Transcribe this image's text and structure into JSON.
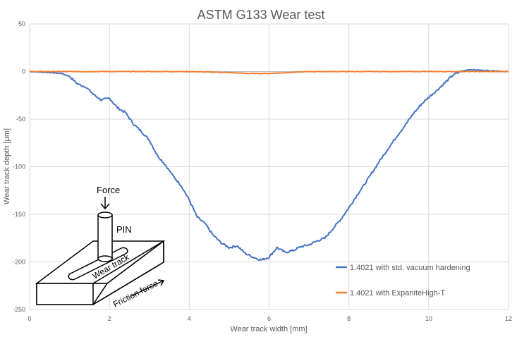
{
  "chart_data": {
    "type": "line",
    "title": "ASTM G133 Wear test",
    "xlabel": "Wear track width [mm]",
    "ylabel": "Wear track depth [μm]",
    "xlim": [
      0,
      12
    ],
    "ylim": [
      -250,
      50
    ],
    "xticks": [
      "0",
      "2",
      "4",
      "6",
      "8",
      "10",
      "12"
    ],
    "yticks": [
      "50",
      "0",
      "-50",
      "-100",
      "-150",
      "-200",
      "-250"
    ],
    "grid": true,
    "legend_position": "bottom-right",
    "series": [
      {
        "name": "1.4021 with std. vacuum hardening",
        "color": "#4472C4",
        "x": [
          0,
          0.5,
          0.8,
          1.0,
          1.2,
          1.4,
          1.6,
          1.8,
          2.0,
          2.2,
          2.4,
          2.6,
          2.8,
          3.0,
          3.2,
          3.4,
          3.6,
          3.8,
          4.0,
          4.2,
          4.4,
          4.6,
          4.8,
          5.0,
          5.2,
          5.4,
          5.6,
          5.8,
          6.0,
          6.2,
          6.4,
          6.6,
          6.8,
          7.0,
          7.2,
          7.4,
          7.6,
          7.8,
          8.0,
          8.2,
          8.4,
          8.6,
          8.8,
          9.0,
          9.2,
          9.4,
          9.6,
          9.8,
          10.0,
          10.2,
          10.4,
          10.6,
          10.8,
          11.0,
          11.5,
          12.0
        ],
        "values": [
          0,
          -1,
          -2,
          -5,
          -13,
          -16,
          -24,
          -30,
          -28,
          -38,
          -43,
          -55,
          -63,
          -72,
          -88,
          -98,
          -110,
          -120,
          -135,
          -153,
          -160,
          -172,
          -180,
          -185,
          -183,
          -191,
          -195,
          -198,
          -195,
          -185,
          -190,
          -188,
          -184,
          -182,
          -178,
          -175,
          -165,
          -155,
          -143,
          -130,
          -118,
          -105,
          -92,
          -80,
          -68,
          -57,
          -45,
          -35,
          -27,
          -20,
          -12,
          -4,
          0,
          2,
          1,
          0
        ]
      },
      {
        "name": "1.4021 with ExpaniteHigh-T",
        "color": "#ED7D31",
        "x": [
          0,
          1,
          2,
          3,
          4,
          5,
          5.5,
          6,
          6.5,
          7,
          8,
          9,
          10,
          11,
          12
        ],
        "values": [
          0,
          0,
          0,
          0,
          0,
          -1,
          -2,
          -2,
          -1,
          0,
          0,
          0,
          0,
          0,
          0
        ]
      }
    ],
    "inset_diagram": {
      "labels": [
        "Force",
        "PIN",
        "Wear track",
        "Friction force"
      ]
    }
  }
}
